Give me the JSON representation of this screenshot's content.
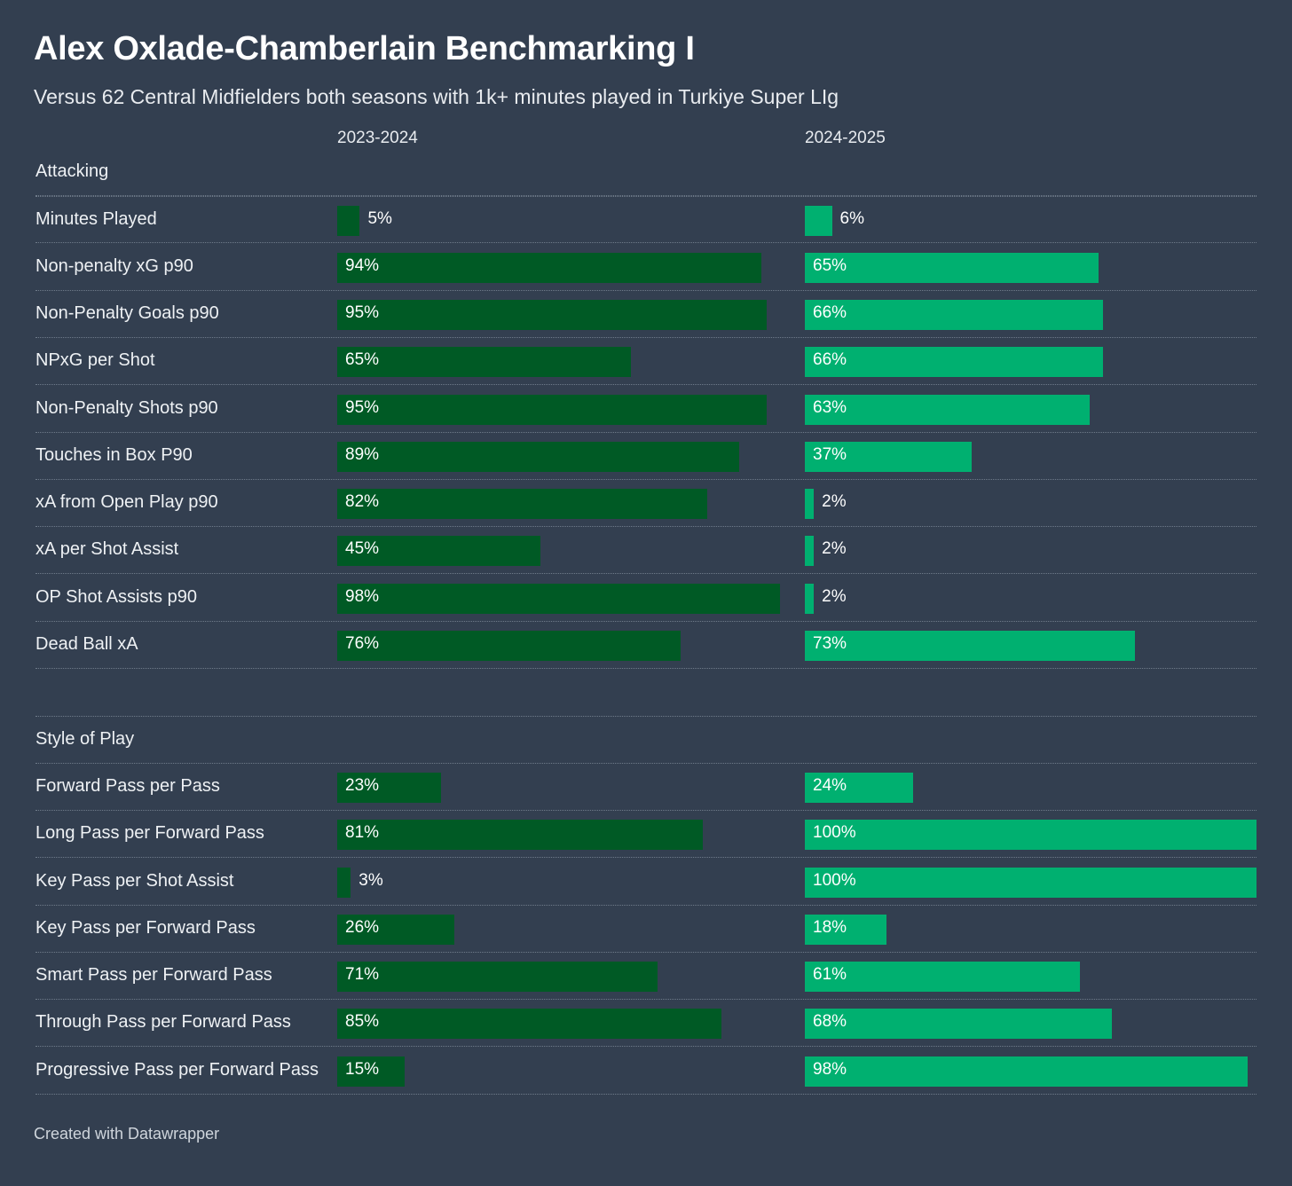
{
  "title": "Alex Oxlade-Chamberlain Benchmarking I",
  "subtitle": "Versus 62 Central Midfielders both seasons with 1k+ minutes played in Turkiye Super LIg",
  "footer": "Created with Datawrapper",
  "colors": {
    "season1": "#005a25",
    "season2": "#00b070",
    "background": "#333f50"
  },
  "chart_data": {
    "type": "bar",
    "title": "Alex Oxlade-Chamberlain Benchmarking I",
    "subtitle": "Versus 62 Central Midfielders both seasons with 1k+ minutes played in Turkiye Super LIg",
    "unit": "%",
    "xlim": [
      0,
      100
    ],
    "series_names": [
      "2023-2024",
      "2024-2025"
    ],
    "sections": [
      {
        "name": "Attacking",
        "rows": [
          {
            "label": "Minutes Played",
            "v1": 5,
            "v2": 6
          },
          {
            "label": "Non-penalty xG p90",
            "v1": 94,
            "v2": 65
          },
          {
            "label": "Non-Penalty Goals p90",
            "v1": 95,
            "v2": 66
          },
          {
            "label": "NPxG per Shot",
            "v1": 65,
            "v2": 66
          },
          {
            "label": "Non-Penalty Shots p90",
            "v1": 95,
            "v2": 63
          },
          {
            "label": "Touches in Box P90",
            "v1": 89,
            "v2": 37
          },
          {
            "label": "xA from Open Play p90",
            "v1": 82,
            "v2": 2
          },
          {
            "label": "xA per Shot Assist",
            "v1": 45,
            "v2": 2
          },
          {
            "label": "OP Shot Assists p90",
            "v1": 98,
            "v2": 2
          },
          {
            "label": "Dead Ball xA",
            "v1": 76,
            "v2": 73
          }
        ]
      },
      {
        "name": "Style of Play",
        "rows": [
          {
            "label": "Forward Pass per Pass",
            "v1": 23,
            "v2": 24
          },
          {
            "label": "Long Pass per Forward Pass",
            "v1": 81,
            "v2": 100
          },
          {
            "label": "Key Pass per Shot Assist",
            "v1": 3,
            "v2": 100
          },
          {
            "label": "Key Pass per Forward Pass",
            "v1": 26,
            "v2": 18
          },
          {
            "label": "Smart Pass per Forward Pass",
            "v1": 71,
            "v2": 61
          },
          {
            "label": "Through Pass per Forward Pass",
            "v1": 85,
            "v2": 68
          },
          {
            "label": "Progressive Pass per Forward Pass",
            "v1": 15,
            "v2": 98
          }
        ]
      }
    ]
  }
}
